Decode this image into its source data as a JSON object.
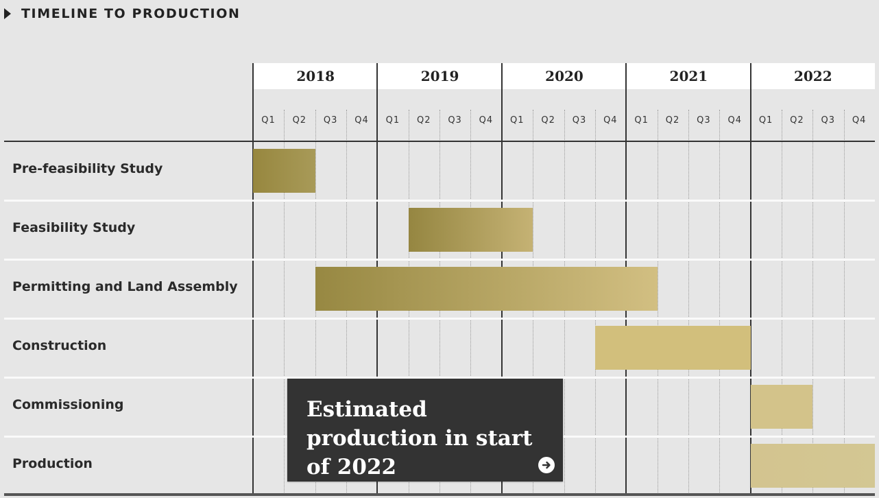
{
  "section": {
    "title": "TIMELINE TO PRODUCTION"
  },
  "chart_data": {
    "type": "gantt",
    "years": [
      "2018",
      "2019",
      "2020",
      "2021",
      "2022"
    ],
    "quarters": [
      "Q1",
      "Q2",
      "Q3",
      "Q4"
    ],
    "tasks": [
      {
        "label": "Pre-feasibility Study",
        "start": "2018 Q1",
        "end": "2018 Q2",
        "start_index": 0,
        "end_index": 1
      },
      {
        "label": "Feasibility Study",
        "start": "2019 Q2",
        "end": "2020 Q1",
        "start_index": 5,
        "end_index": 8
      },
      {
        "label": "Permitting and Land Assembly",
        "start": "2018 Q3",
        "end": "2021 Q1",
        "start_index": 2,
        "end_index": 12
      },
      {
        "label": "Construction",
        "start": "2020 Q4",
        "end": "2021 Q4",
        "start_index": 11,
        "end_index": 15
      },
      {
        "label": "Commissioning",
        "start": "2022 Q1",
        "end": "2022 Q2",
        "start_index": 16,
        "end_index": 17
      },
      {
        "label": "Production",
        "start": "2022 Q1",
        "end": "2022 Q4",
        "start_index": 16,
        "end_index": 19
      }
    ],
    "colors": {
      "bar_dark": "#988844",
      "bar_mid": "#c5b070",
      "bar_light": "#d2bf7c",
      "bar_pale": "#d3c490"
    }
  },
  "callout": {
    "text": "Estimated production in start of 2022",
    "icon": "arrow-right-circle-icon"
  }
}
